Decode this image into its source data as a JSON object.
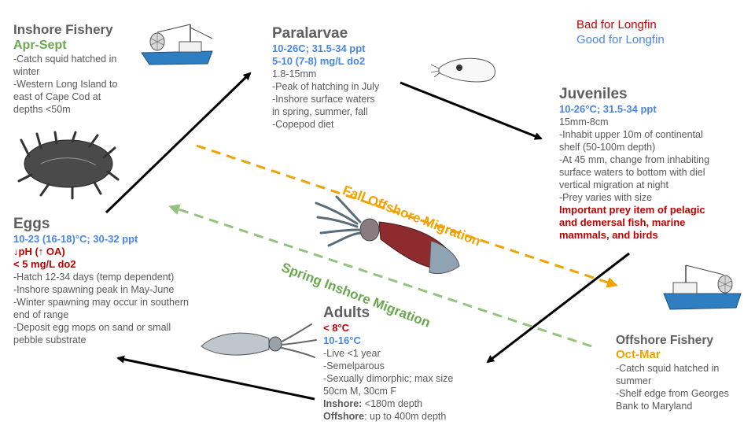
{
  "legend": {
    "bad": "Bad for Longfin",
    "good": "Good for Longfin",
    "bad_color": "#c00000",
    "good_color": "#4a86e8"
  },
  "inshore_fishery": {
    "title": "Inshore Fishery",
    "season": "Apr-Sept",
    "notes": [
      "-Catch squid hatched in",
      "winter",
      "-Western Long Island to",
      "east of Cape Cod at",
      "depths <50m"
    ]
  },
  "paralarvae": {
    "title": "Paralarvae",
    "cond1": "10-26C; 31.5-34 ppt",
    "cond2": "5-10 (7-8) mg/L do2",
    "notes": [
      "1.8-15mm",
      "-Peak of hatching in July",
      "-Inshore surface waters",
      "in spring, summer, fall",
      "-Copepod diet"
    ]
  },
  "juveniles": {
    "title": "Juveniles",
    "cond1": "10-26°C; 31.5-34 ppt",
    "notes": [
      "15mm-8cm",
      "-Inhabit upper 10m of continental",
      "shelf (50-100m depth)",
      "-At 45 mm, change from inhabiting",
      "surface waters to bottom with diel",
      "vertical migration at night",
      "-Prey varies with size"
    ],
    "important": [
      "Important prey item of pelagic",
      "and demersal fish, marine",
      "mammals, and birds"
    ]
  },
  "eggs": {
    "title": "Eggs",
    "cond1": "10-23 (16-18)°C; 30-32 ppt",
    "cond2": "↓pH (↑ OA)",
    "cond3": "< 5 mg/L do2",
    "notes": [
      "-Hatch 12-34 days (temp dependent)",
      "-Inshore spawning peak in May-June",
      "-Winter spawning may occur in southern",
      "end of range",
      "-Deposit egg mops on sand or small",
      "pebble substrate"
    ]
  },
  "adults": {
    "title": "Adults",
    "cond_bad": "< 8°C",
    "cond_good": "10-16°C",
    "notes": [
      "-Live <1 year",
      "-Semelparous",
      "-Sexually dimorphic; max size",
      "50cm M, 30cm F"
    ],
    "inshore_label": "Inshore:",
    "inshore_value": " <180m depth",
    "offshore_label": "Offshore",
    "offshore_value": ": up to 400m depth"
  },
  "offshore_fishery": {
    "title": "Offshore Fishery",
    "season": "Oct-Mar",
    "notes": [
      "-Catch squid hatched in",
      "summer",
      "-Shelf edge from Georges",
      "Bank to Maryland"
    ]
  },
  "migration": {
    "fall": "Fall Offshore Migration",
    "spring": "Spring Inshore Migration",
    "fall_color": "#f1a200",
    "spring_color": "#93c47d"
  }
}
